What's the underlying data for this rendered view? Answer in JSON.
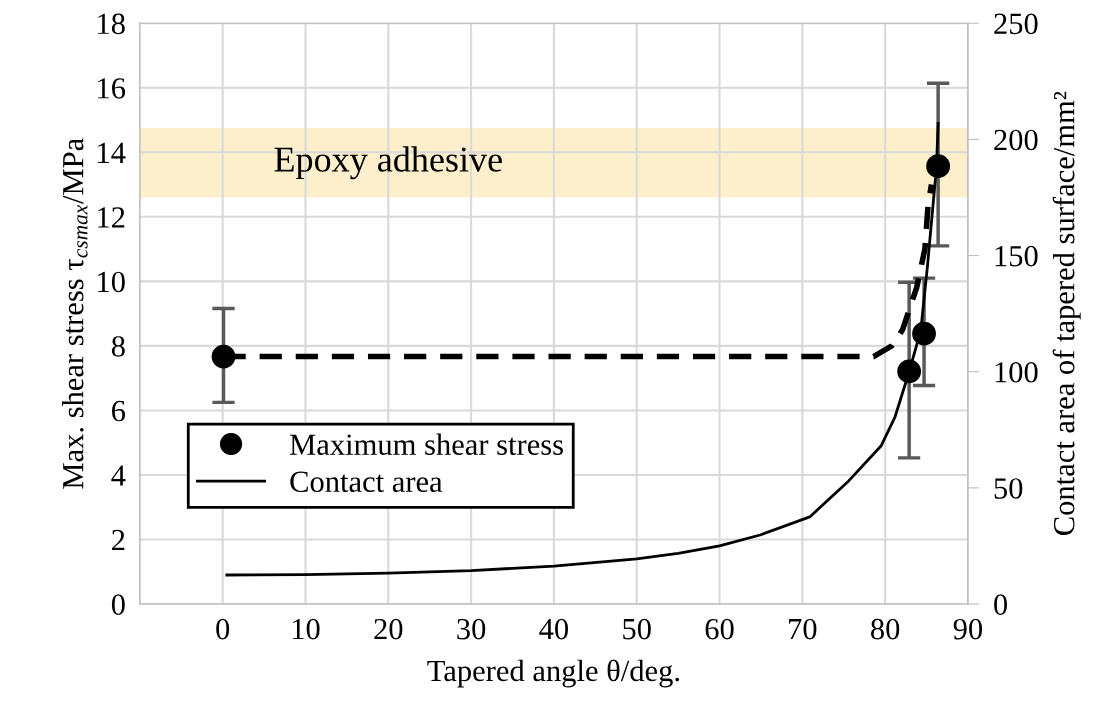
{
  "chart_data": {
    "type": "scatter",
    "xlabel": "Tapered angle θ/deg.",
    "ylabel": "Max. shear stress τ$_{csmax}$/MPa",
    "y2label": "Contact area of tapered surface/mm²",
    "xlim": [
      -10,
      90
    ],
    "xticks": [
      0,
      10,
      20,
      30,
      40,
      50,
      60,
      70,
      80,
      90
    ],
    "ylim": [
      0,
      18
    ],
    "yticks": [
      0,
      2,
      4,
      6,
      8,
      10,
      12,
      14,
      16,
      18
    ],
    "y2lim": [
      0,
      250
    ],
    "y2ticks": [
      0,
      50,
      100,
      150,
      200,
      250
    ],
    "grid": true,
    "legend": "bottom left",
    "bands": [
      {
        "axis": "y",
        "from": 12.6,
        "to": 14.75,
        "label": "Epoxy adhesive",
        "color": "#fdefcc"
      }
    ],
    "series": [
      {
        "name": "Maximum shear stress",
        "marker": "circle",
        "color": "#000000",
        "x": [
          0.1,
          82.9,
          84.7,
          86.4
        ],
        "values": [
          7.67,
          7.21,
          8.38,
          13.57
        ],
        "errors": [
          [
            6.25,
            9.16
          ],
          [
            4.53,
            9.97
          ],
          [
            6.77,
            10.1
          ],
          [
            11.1,
            16.14
          ]
        ]
      },
      {
        "type": "line",
        "line_style": "dashed",
        "color": "#000000",
        "x": [
          0.1,
          78.6,
          80.8,
          82.1,
          83.8,
          84.8,
          85.2,
          85.6
        ],
        "values": [
          7.67,
          7.67,
          8.0,
          8.5,
          9.8,
          11.0,
          12.4,
          13.0
        ]
      },
      {
        "name": "Contact area",
        "type": "line",
        "line_style": "solid",
        "axis": "y2",
        "color": "#000000",
        "x": [
          0.5,
          10,
          20,
          30,
          40,
          50,
          55,
          60,
          64.9,
          70.9,
          75.6,
          79.5,
          81.2,
          82.9,
          84.3,
          85.1,
          86.2,
          86.4
        ],
        "values": [
          12.5,
          12.7,
          13.3,
          14.4,
          16.3,
          19.4,
          21.8,
          25,
          29.7,
          37.5,
          53,
          68,
          80.6,
          100,
          117.7,
          145,
          188,
          206.9
        ]
      }
    ]
  }
}
